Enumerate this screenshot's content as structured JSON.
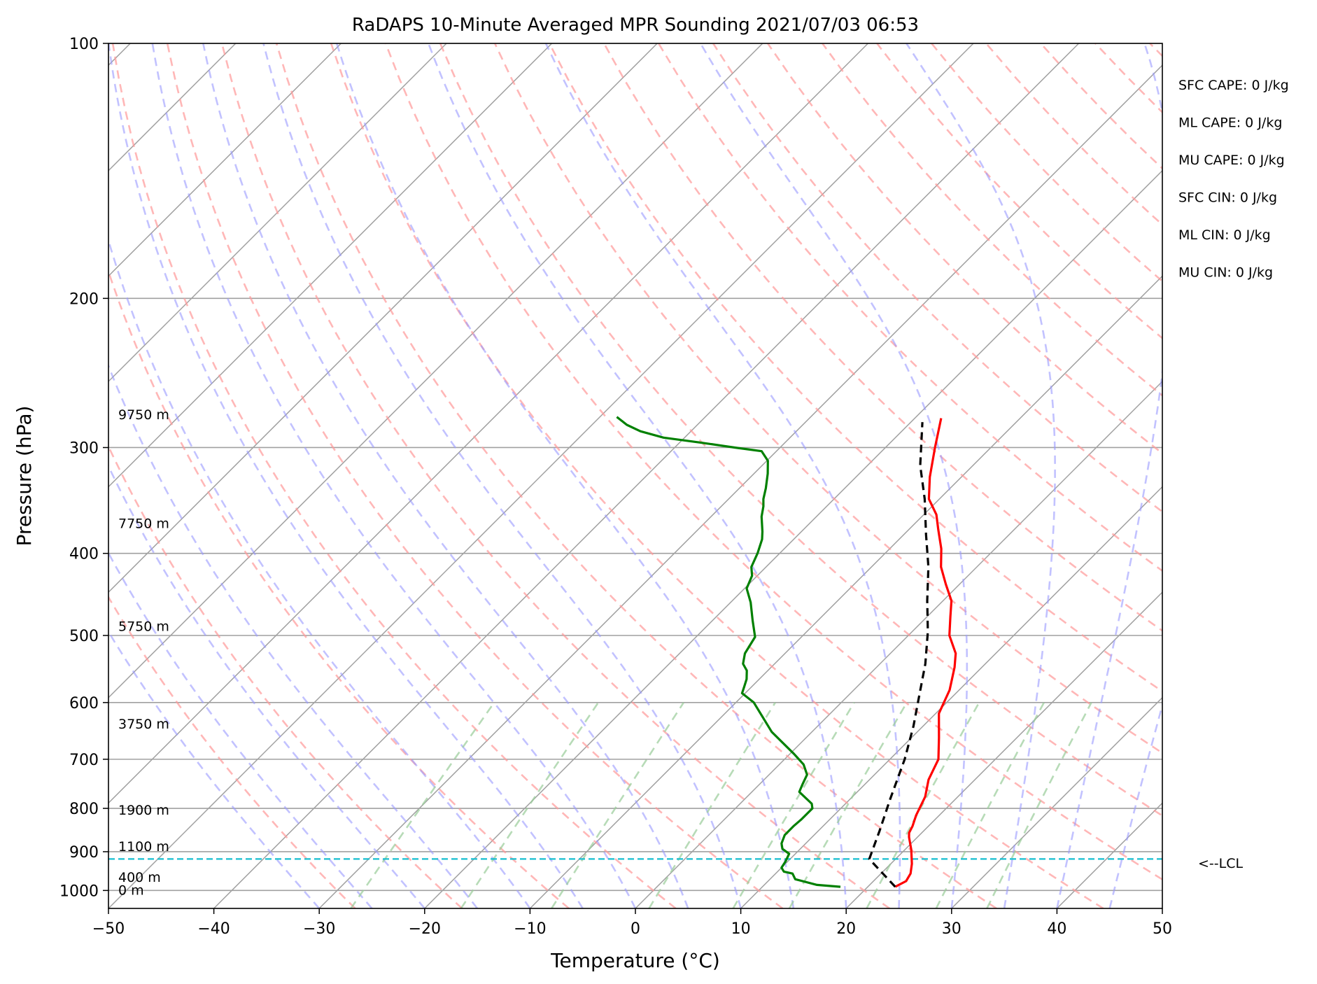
{
  "chart_data": {
    "type": "line",
    "chart_kind": "skew-T log-P sounding",
    "title": "RaDAPS 10-Minute Averaged MPR Sounding 2021/07/03 06:53",
    "xlabel": "Temperature (°C)",
    "ylabel": "Pressure (hPa)",
    "xlim": [
      -50,
      50
    ],
    "ylim": [
      1050,
      100
    ],
    "y_scale": "log",
    "grid": true,
    "x_ticks": [
      "−50",
      "−40",
      "−30",
      "−20",
      "−10",
      "0",
      "10",
      "20",
      "30",
      "40",
      "50"
    ],
    "y_ticks": [
      "100",
      "200",
      "300",
      "400",
      "500",
      "600",
      "700",
      "800",
      "900",
      "1000"
    ],
    "height_labels": [
      "9750 m",
      "7750 m",
      "5750 m",
      "3750 m",
      "1900 m",
      "1100 m",
      "400 m",
      "0 m"
    ],
    "lcl_label": "<--LCL",
    "lcl_pressure": 918,
    "indices": [
      "SFC CAPE: 0 J/kg",
      "ML CAPE: 0 J/kg",
      "MU CAPE: 0 J/kg",
      "SFC CIN: 0 J/kg",
      "ML CIN: 0 J/kg",
      "MU CIN: 0 J/kg"
    ],
    "colors": {
      "temperature": "#ff0000",
      "dewpoint": "#008000",
      "parcel": "#000000",
      "lcl_line": "#17becf",
      "dry_adiabat": "#ff9999",
      "moist_adiabat": "#9999ff",
      "mixing_ratio": "#99cc99",
      "isotherm_grid": "#a0a0a0"
    },
    "series": [
      {
        "x": [
          22.6,
          23.1,
          22.8,
          22.0,
          20.6,
          19.2,
          18.8,
          18.5,
          17.8,
          16.9,
          15.6,
          14.6,
          12.6,
          10.3,
          9.1,
          7.4,
          6.2,
          3.9,
          2.2,
          0.8,
          -1.3,
          -3.4,
          -5.1,
          -7.2,
          -8.8,
          -11.0,
          -13.0,
          -15.3,
          -17.5
        ],
        "y": [
          990,
          975,
          955,
          930,
          895,
          865,
          855,
          840,
          815,
          775,
          740,
          700,
          660,
          618,
          580,
          545,
          525,
          500,
          475,
          455,
          435,
          415,
          395,
          375,
          360,
          345,
          325,
          300,
          277
        ]
      },
      {
        "x": [
          17.4,
          15.0,
          12.4,
          11.6,
          10.6,
          10.0,
          9.8,
          9.4,
          8.3,
          7.7,
          7.2,
          7.2,
          7.3,
          7.3,
          6.8,
          4.5,
          4.1,
          3.6,
          2.3,
          0.4,
          -3.8,
          -8.3,
          -10.3,
          -10.7,
          -11.2,
          -12.0,
          -13.0,
          -13.8,
          -14.4,
          -16.2,
          -18.1,
          -19.8,
          -20.5,
          -21.4,
          -22.1,
          -23.0,
          -23.7,
          -25.2,
          -26.0,
          -26.7,
          -27.5,
          -28.7,
          -29.9,
          -31.4,
          -34.3,
          -38.0,
          -42.0,
          -44.8,
          -46.7,
          -48.4
        ],
        "y": [
          990,
          985,
          970,
          955,
          950,
          940,
          925,
          905,
          893,
          880,
          860,
          840,
          825,
          800,
          790,
          765,
          750,
          730,
          710,
          690,
          650,
          600,
          585,
          575,
          563,
          550,
          540,
          525,
          502,
          480,
          457,
          440,
          425,
          415,
          400,
          385,
          377,
          362,
          352,
          345,
          335,
          322,
          311,
          303,
          300,
          296,
          292,
          287,
          282,
          276
        ]
      },
      {
        "x": [
          22.6,
          17.5,
          15.8,
          13.8,
          11.4,
          9.1,
          6.8,
          4.3,
          1.5,
          -1.5,
          -4.6,
          -7.9,
          -11.4,
          -15.0,
          -18.9
        ],
        "y": [
          990,
          918,
          850,
          780,
          700,
          640,
          590,
          540,
          495,
          455,
          415,
          380,
          345,
          315,
          280
        ]
      }
    ]
  }
}
